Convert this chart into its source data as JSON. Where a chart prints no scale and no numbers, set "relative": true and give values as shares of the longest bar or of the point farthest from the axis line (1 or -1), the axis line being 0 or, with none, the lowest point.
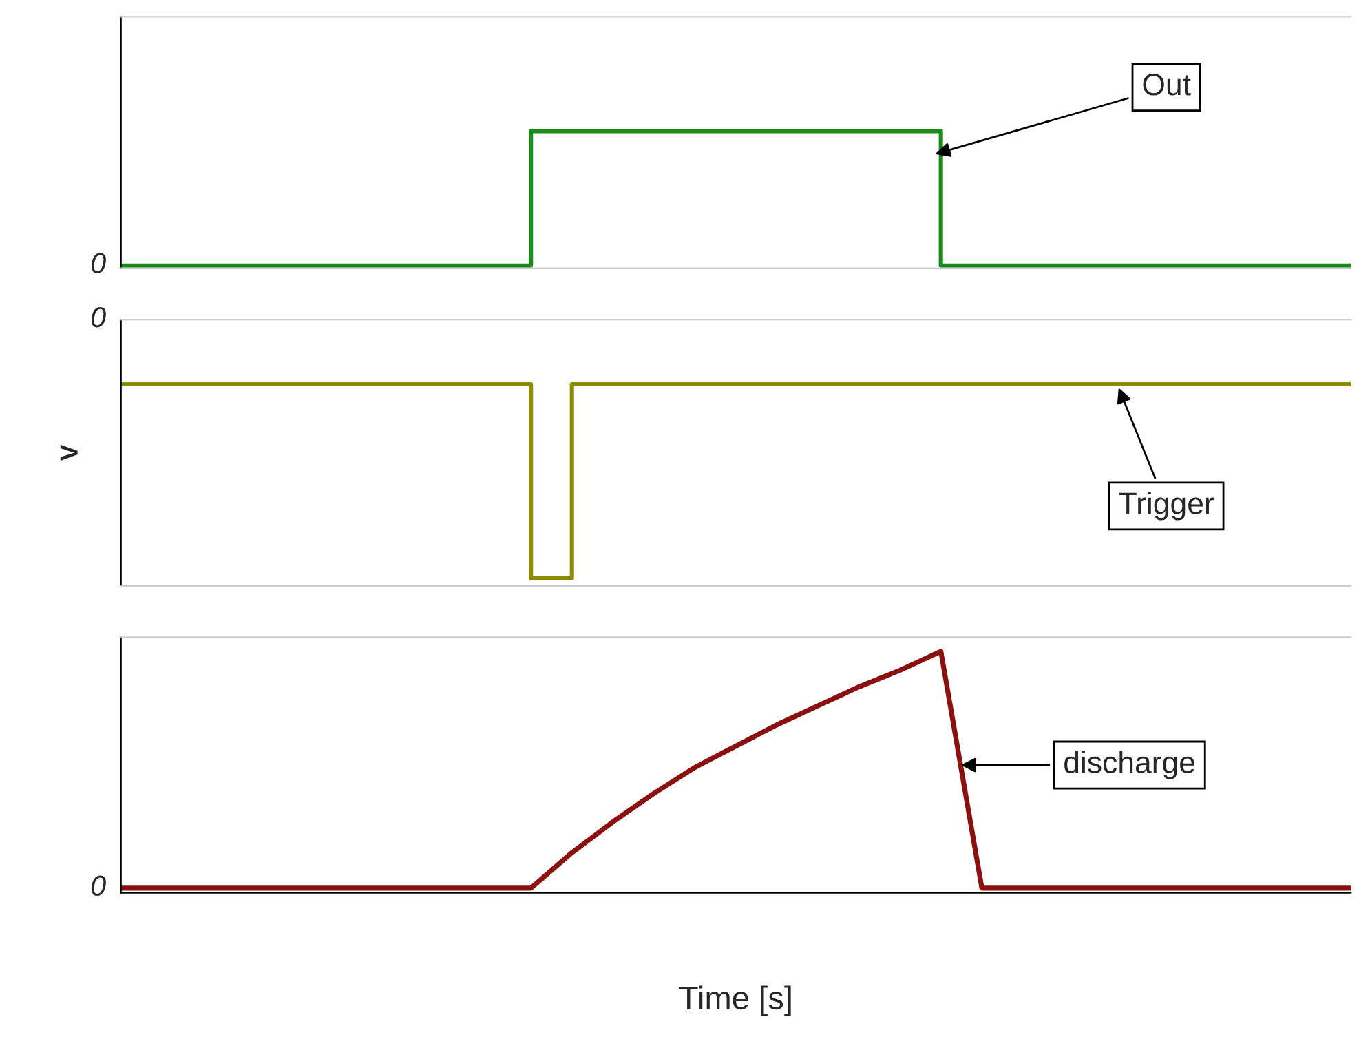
{
  "chart_data": [
    {
      "type": "step",
      "categories": [
        null,
        null,
        null,
        null,
        null,
        null,
        null,
        null,
        null,
        null,
        null,
        null,
        null,
        null,
        null,
        null,
        null,
        null,
        null,
        null,
        null,
        null,
        null,
        null,
        null,
        null,
        null,
        null,
        null,
        null,
        null
      ],
      "relative": true,
      "annotations": [
        "Out",
        "0"
      ],
      "series": [
        {
          "color": "#1a8a1a",
          "values": [
            0,
            0,
            0,
            0,
            0,
            0,
            0,
            0,
            0,
            0,
            1,
            1,
            1,
            1,
            1,
            1,
            1,
            1,
            1,
            1,
            0,
            0,
            0,
            0,
            0,
            0,
            0,
            0,
            0,
            0,
            0
          ]
        }
      ]
    },
    {
      "type": "step",
      "categories": [
        null,
        null,
        null,
        null,
        null,
        null,
        null,
        null,
        null,
        null,
        null,
        null,
        null,
        null,
        null,
        null,
        null,
        null,
        null,
        null,
        null,
        null,
        null,
        null,
        null,
        null,
        null,
        null,
        null,
        null,
        null
      ],
      "relative": true,
      "ylabel": "V",
      "annotations": [
        "Trigger",
        "0"
      ],
      "series": [
        {
          "color": "#8c8c00",
          "values": [
            -0.25,
            -0.25,
            -0.25,
            -0.25,
            -0.25,
            -0.25,
            -0.25,
            -0.25,
            -0.25,
            -0.25,
            -1,
            -0.25,
            -0.25,
            -0.25,
            -0.25,
            -0.25,
            -0.25,
            -0.25,
            -0.25,
            -0.25,
            -0.25,
            -0.25,
            -0.25,
            -0.25,
            -0.25,
            -0.25,
            -0.25,
            -0.25,
            -0.25,
            -0.25,
            -0.25
          ]
        }
      ]
    },
    {
      "type": "line",
      "categories": [
        null,
        null,
        null,
        null,
        null,
        null,
        null,
        null,
        null,
        null,
        null,
        null,
        null,
        null,
        null,
        null,
        null,
        null,
        null,
        null,
        null,
        null,
        null,
        null,
        null,
        null,
        null,
        null,
        null,
        null,
        null
      ],
      "relative": true,
      "xlabel": "Time [s]",
      "annotations": [
        "discharge",
        "0"
      ],
      "series": [
        {
          "color": "#8b1010",
          "values": [
            0,
            0,
            0,
            0,
            0,
            0,
            0,
            0,
            0,
            0,
            0,
            0.15,
            0.28,
            0.4,
            0.51,
            0.6,
            0.69,
            0.77,
            0.85,
            0.92,
            1,
            0,
            0,
            0,
            0,
            0,
            0,
            0,
            0,
            0,
            0
          ]
        }
      ]
    }
  ]
}
